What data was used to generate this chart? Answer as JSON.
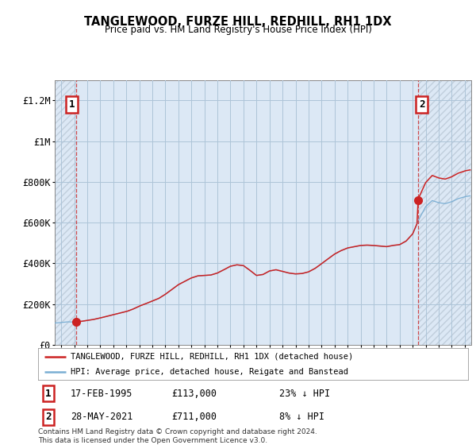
{
  "title": "TANGLEWOOD, FURZE HILL, REDHILL, RH1 1DX",
  "subtitle": "Price paid vs. HM Land Registry's House Price Index (HPI)",
  "ylim": [
    0,
    1300000
  ],
  "xlim_start": 1993.5,
  "xlim_end": 2025.5,
  "sale1_x": 1995.12,
  "sale1_y": 113000,
  "sale2_x": 2021.41,
  "sale2_y": 711000,
  "hpi_color": "#7bafd4",
  "price_color": "#cc2222",
  "marker_color": "#cc2222",
  "bg_color": "#dce8f5",
  "hatch_color": "#c0cedc",
  "grid_color": "#adc4d8",
  "legend_price_label": "TANGLEWOOD, FURZE HILL, REDHILL, RH1 1DX (detached house)",
  "legend_hpi_label": "HPI: Average price, detached house, Reigate and Banstead",
  "footer": "Contains HM Land Registry data © Crown copyright and database right 2024.\nThis data is licensed under the Open Government Licence v3.0."
}
